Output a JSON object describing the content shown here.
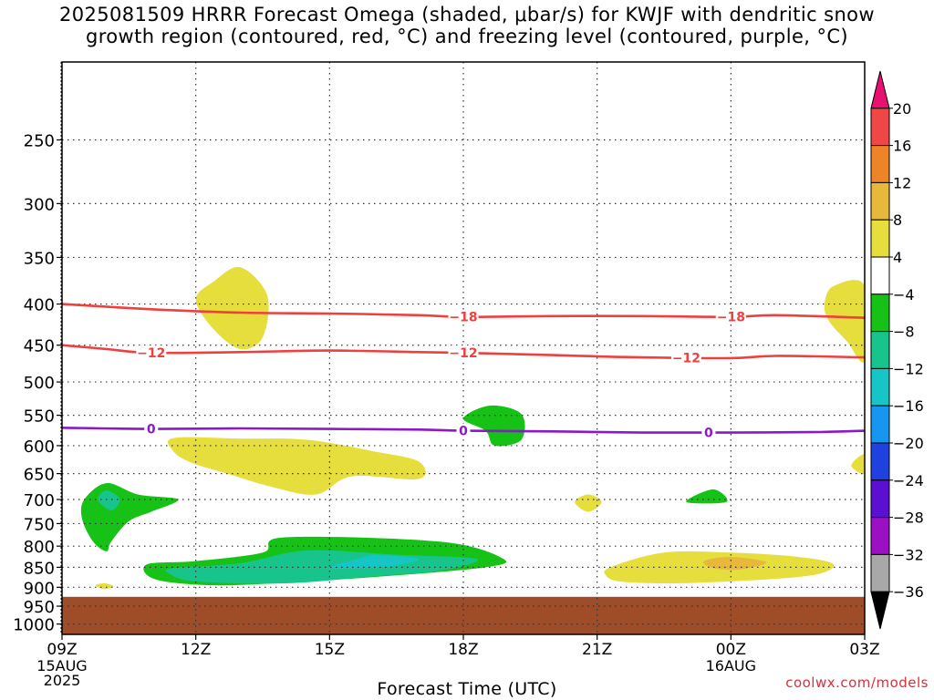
{
  "chart_data": {
    "type": "time-height cross section",
    "title": "2025081509 HRRR Forecast Omega (shaded, μbar/s) for KWJF with dendritic snow growth region (contoured, red, °C) and freezing level (contoured, purple, °C)",
    "title_lines": [
      "2025081509 HRRR Forecast Omega (shaded, μbar/s) for KWJF with dendritic snow",
      "growth region (contoured, red, °C) and freezing level (contoured, purple, °C)"
    ],
    "xlabel": "Forecast Time (UTC)",
    "x_ticks": [
      {
        "hour": 0,
        "label": "09Z",
        "sub": [
          "15AUG",
          "2025"
        ]
      },
      {
        "hour": 3,
        "label": "12Z",
        "sub": []
      },
      {
        "hour": 6,
        "label": "15Z",
        "sub": []
      },
      {
        "hour": 9,
        "label": "18Z",
        "sub": []
      },
      {
        "hour": 12,
        "label": "21Z",
        "sub": []
      },
      {
        "hour": 15,
        "label": "00Z",
        "sub": [
          "16AUG"
        ]
      },
      {
        "hour": 18,
        "label": "03Z",
        "sub": []
      }
    ],
    "xlim_hours": [
      0,
      18
    ],
    "y_ticks": [
      250,
      300,
      350,
      400,
      450,
      500,
      550,
      600,
      650,
      700,
      750,
      800,
      850,
      900,
      950,
      1000
    ],
    "ylim_hPa": [
      200,
      1030
    ],
    "y_scale": "log-pressure",
    "ground_level_hPa": 925,
    "grid": true,
    "colorbar": {
      "ticks": [
        "20",
        "16",
        "12",
        "8",
        "4",
        "−4",
        "−8",
        "−12",
        "−16",
        "−20",
        "−24",
        "−28",
        "−32",
        "−36"
      ],
      "bands": [
        {
          "color": "#e8116f",
          "shape": "triangle-top"
        },
        {
          "color": "#f04646"
        },
        {
          "color": "#ee8428"
        },
        {
          "color": "#e8b83a"
        },
        {
          "color": "#e6de3c"
        },
        {
          "color": "#ffffff"
        },
        {
          "color": "#15c215"
        },
        {
          "color": "#17c58c"
        },
        {
          "color": "#16c6c6"
        },
        {
          "color": "#1696ee"
        },
        {
          "color": "#1e41e0"
        },
        {
          "color": "#5a0fd2"
        },
        {
          "color": "#9a10c2"
        },
        {
          "color": "#a8a8a8"
        },
        {
          "color": "#000000",
          "shape": "triangle-bottom"
        }
      ]
    },
    "contours": [
      {
        "name": "dendritic -18",
        "label": "−18",
        "color": "#ef4040",
        "points": [
          [
            0,
            400
          ],
          [
            2,
            406
          ],
          [
            4,
            410
          ],
          [
            6,
            411
          ],
          [
            8,
            413
          ],
          [
            9,
            415
          ],
          [
            11,
            414
          ],
          [
            13,
            414
          ],
          [
            15,
            415
          ],
          [
            16,
            413
          ],
          [
            18,
            416
          ]
        ],
        "label_hours": [
          9,
          15
        ]
      },
      {
        "name": "dendritic -12",
        "label": "−12",
        "color": "#ef4040",
        "points": [
          [
            0,
            450
          ],
          [
            1,
            455
          ],
          [
            2,
            460
          ],
          [
            4,
            459
          ],
          [
            6,
            457
          ],
          [
            8,
            459
          ],
          [
            9,
            460
          ],
          [
            11,
            463
          ],
          [
            13,
            466
          ],
          [
            15,
            467
          ],
          [
            16,
            464
          ],
          [
            18,
            466
          ]
        ],
        "label_hours": [
          2,
          9,
          14
        ]
      },
      {
        "name": "freezing level 0",
        "label": "0",
        "color": "#8d18c9",
        "points": [
          [
            0,
            570
          ],
          [
            2,
            572
          ],
          [
            4,
            571
          ],
          [
            6,
            572
          ],
          [
            8,
            573
          ],
          [
            9,
            575
          ],
          [
            11,
            576
          ],
          [
            13,
            578
          ],
          [
            15,
            578
          ],
          [
            17,
            577
          ],
          [
            18,
            575
          ]
        ],
        "label_hours": [
          2,
          9,
          14.5
        ]
      }
    ],
    "omega_regions": [
      {
        "color": "#e6de3c",
        "points": [
          [
            3.0,
            395
          ],
          [
            3.4,
            375
          ],
          [
            4.0,
            360
          ],
          [
            4.6,
            390
          ],
          [
            4.5,
            440
          ],
          [
            4.0,
            455
          ],
          [
            3.4,
            430
          ]
        ]
      },
      {
        "color": "#e6de3c",
        "points": [
          [
            17.1,
            400
          ],
          [
            17.3,
            380
          ],
          [
            18,
            380
          ],
          [
            18,
            470
          ],
          [
            17.6,
            445
          ],
          [
            17.2,
            420
          ]
        ]
      },
      {
        "color": "#e6de3c",
        "points": [
          [
            18,
            615
          ],
          [
            17.7,
            635
          ],
          [
            18,
            650
          ]
        ]
      },
      {
        "color": "#e6de3c",
        "points": [
          [
            2.5,
            587
          ],
          [
            4,
            588
          ],
          [
            5.5,
            590
          ],
          [
            7,
            610
          ],
          [
            8.0,
            628
          ],
          [
            8.0,
            660
          ],
          [
            6.5,
            655
          ],
          [
            5.7,
            690
          ],
          [
            4.7,
            675
          ],
          [
            3.7,
            650
          ],
          [
            2.9,
            630
          ],
          [
            2.5,
            610
          ]
        ]
      },
      {
        "color": "#e6de3c",
        "points": [
          [
            11.8,
            690
          ],
          [
            12.1,
            705
          ],
          [
            11.8,
            725
          ],
          [
            11.5,
            705
          ]
        ]
      },
      {
        "color": "#15c215",
        "points": [
          [
            9.0,
            555
          ],
          [
            9.6,
            535
          ],
          [
            10.3,
            548
          ],
          [
            10.3,
            590
          ],
          [
            9.7,
            600
          ],
          [
            9.5,
            575
          ]
        ]
      },
      {
        "color": "#15c215",
        "points": [
          [
            14.0,
            705
          ],
          [
            14.6,
            680
          ],
          [
            14.9,
            705
          ]
        ]
      },
      {
        "color": "#15c215",
        "points": [
          [
            0.5,
            700
          ],
          [
            1.0,
            668
          ],
          [
            1.7,
            690
          ],
          [
            2.6,
            700
          ],
          [
            2.0,
            725
          ],
          [
            1.5,
            745
          ],
          [
            1.1,
            790
          ],
          [
            1.0,
            812
          ],
          [
            0.7,
            790
          ],
          [
            0.45,
            740
          ]
        ]
      },
      {
        "color": "#17c58c",
        "points": [
          [
            0.8,
            700
          ],
          [
            1.0,
            682
          ],
          [
            1.3,
            700
          ],
          [
            1.1,
            722
          ]
        ]
      },
      {
        "color": "#15c215",
        "points": [
          [
            1.9,
            843
          ],
          [
            3,
            835
          ],
          [
            4.5,
            815
          ],
          [
            5.0,
            780
          ],
          [
            8.5,
            790
          ],
          [
            9.9,
            830
          ],
          [
            9.5,
            850
          ],
          [
            7.5,
            870
          ],
          [
            5.5,
            885
          ],
          [
            3.5,
            895
          ],
          [
            2.1,
            880
          ]
        ]
      },
      {
        "color": "#17c58c",
        "points": [
          [
            2.5,
            852
          ],
          [
            4,
            840
          ],
          [
            5.5,
            810
          ],
          [
            7.5,
            820
          ],
          [
            9.3,
            830
          ],
          [
            8.5,
            858
          ],
          [
            7.0,
            872
          ],
          [
            5.0,
            890
          ],
          [
            3.0,
            885
          ],
          [
            2.4,
            865
          ]
        ]
      },
      {
        "color": "#16c6c6",
        "points": [
          [
            7.0,
            820
          ],
          [
            8.0,
            830
          ],
          [
            7.3,
            848
          ],
          [
            6.0,
            852
          ],
          [
            6.8,
            825
          ]
        ]
      },
      {
        "color": "#e6de3c",
        "points": [
          [
            0.75,
            895
          ],
          [
            0.95,
            890
          ],
          [
            1.15,
            897
          ],
          [
            0.95,
            905
          ]
        ]
      },
      {
        "color": "#e6de3c",
        "points": [
          [
            12.3,
            850
          ],
          [
            13.5,
            815
          ],
          [
            15,
            815
          ],
          [
            16.5,
            825
          ],
          [
            17.3,
            843
          ],
          [
            16.8,
            870
          ],
          [
            15,
            885
          ],
          [
            13.5,
            890
          ],
          [
            12.5,
            885
          ],
          [
            12.2,
            870
          ]
        ]
      },
      {
        "color": "#e8b83a",
        "points": [
          [
            14.4,
            835
          ],
          [
            15.0,
            825
          ],
          [
            15.8,
            838
          ],
          [
            15.2,
            855
          ],
          [
            14.6,
            852
          ]
        ]
      }
    ],
    "ground_color": "#9e4d28"
  },
  "watermark": "coolwx.com/models"
}
